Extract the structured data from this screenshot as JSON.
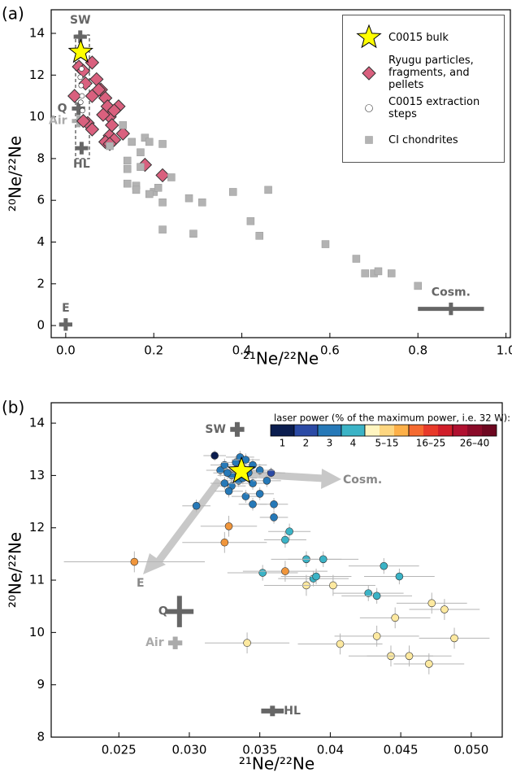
{
  "chart_data": [
    {
      "type": "scatter",
      "panel_label": "(a)",
      "x_label": "²¹Ne/²²Ne",
      "y_label": "²⁰Ne/²²Ne",
      "xlim": [
        -0.033,
        1.01
      ],
      "ylim": [
        -0.58,
        15.13
      ],
      "xticks": [
        {
          "value": 0,
          "label": "0.0"
        },
        0.2,
        0.4,
        0.6,
        0.8,
        {
          "value": 1,
          "label": "1.0"
        }
      ],
      "yticks": [
        0,
        2,
        4,
        6,
        8,
        10,
        12,
        14
      ],
      "legend": "upper right",
      "series": [
        {
          "name": "C0015 bulk",
          "marker": "star",
          "color": "#ffff00",
          "x": [
            0.034
          ],
          "values": [
            13.1
          ]
        },
        {
          "name": "Ryugu particles, fragments, and pellets",
          "marker": "diamond",
          "color": "#d9607e",
          "x": [
            0.02,
            0.03,
            0.04,
            0.06,
            0.045,
            0.05,
            0.06,
            0.07,
            0.08,
            0.09,
            0.095,
            0.1,
            0.1,
            0.11,
            0.09,
            0.12,
            0.13,
            0.085,
            0.06,
            0.04,
            0.11,
            0.105,
            0.18,
            0.22,
            0.1,
            0.075
          ],
          "values": [
            11.0,
            12.4,
            12.2,
            12.6,
            11.6,
            9.7,
            9.4,
            11.8,
            11.3,
            10.9,
            10.5,
            10.0,
            9.1,
            8.9,
            8.8,
            10.5,
            9.2,
            10.1,
            11.0,
            9.8,
            10.3,
            9.6,
            7.7,
            7.2,
            8.7,
            11.3
          ]
        },
        {
          "name": "C0015 extraction steps",
          "marker": "circle",
          "color": "#ffffff",
          "x": [
            0.033,
            0.035,
            0.037,
            0.034,
            0.036,
            0.038
          ],
          "values": [
            11.9,
            11.5,
            11.0,
            10.7,
            12.3,
            10.3
          ]
        },
        {
          "name": "CI chondrites",
          "marker": "square",
          "color": "#b3b3b3",
          "x": [
            0.1,
            0.14,
            0.14,
            0.15,
            0.14,
            0.16,
            0.17,
            0.18,
            0.19,
            0.2,
            0.21,
            0.22,
            0.22,
            0.22,
            0.24,
            0.28,
            0.29,
            0.31,
            0.38,
            0.42,
            0.44,
            0.46,
            0.59,
            0.66,
            0.68,
            0.7,
            0.71,
            0.74,
            0.8,
            0.13,
            0.17,
            0.16,
            0.19
          ],
          "values": [
            8.6,
            7.9,
            7.5,
            8.8,
            6.8,
            6.7,
            8.3,
            9.0,
            8.8,
            6.4,
            6.6,
            8.7,
            5.9,
            4.6,
            7.1,
            6.1,
            4.4,
            5.9,
            6.4,
            5.0,
            4.3,
            6.5,
            3.9,
            3.2,
            2.5,
            2.5,
            2.6,
            2.5,
            1.9,
            9.6,
            7.6,
            6.5,
            6.3
          ]
        }
      ],
      "endmembers": [
        {
          "name": "SW",
          "x": 0.033,
          "y": 13.84,
          "xerr": 0.015,
          "yerr": 0.3,
          "color": "#666666",
          "label_pos": "top"
        },
        {
          "name": "Q",
          "x": 0.029,
          "y": 10.4,
          "xerr": 0.015,
          "yerr": 0.3,
          "color": "#666666",
          "label_pos": "left"
        },
        {
          "name": "Air",
          "x": 0.029,
          "y": 9.8,
          "xerr": 0.015,
          "yerr": 0.3,
          "color": "#aaaaaa",
          "label_pos": "left"
        },
        {
          "name": "HL",
          "x": 0.036,
          "y": 8.5,
          "xerr": 0.015,
          "yerr": 0.3,
          "color": "#666666",
          "label_pos": "bottom"
        },
        {
          "name": "E",
          "x": 0.0,
          "y": 0.05,
          "xerr": 0.015,
          "yerr": 0.3,
          "color": "#666666",
          "label_pos": "top"
        },
        {
          "name": "Cosm.",
          "x": 0.875,
          "y": 0.8,
          "xerr": 0.075,
          "yerr": 0.3,
          "color": "#666666",
          "label_pos": "top"
        }
      ]
    },
    {
      "type": "scatter",
      "panel_label": "(b)",
      "x_label": "²¹Ne/²²Ne",
      "y_label": "²⁰Ne/²²Ne",
      "xlim": [
        0.0202,
        0.0522
      ],
      "ylim": [
        8,
        14.39
      ],
      "xticks": [
        0.025,
        {
          "value": 0.03,
          "label": "0.030"
        },
        0.035,
        0.04,
        0.045,
        {
          "value": 0.05,
          "label": "0.050"
        }
      ],
      "yticks": [
        8,
        9,
        10,
        11,
        12,
        13,
        14
      ],
      "colorbar_title": "laser power (% of the maximum power, i.e. 32 W):",
      "series": [
        {
          "name": "1",
          "marker": "circle",
          "color": "#0b1d4f",
          "bar_colors": [
            "#0b1d4f"
          ],
          "x": [
            0.0318
          ],
          "values": [
            13.38
          ],
          "xerr": [
            0.0008
          ],
          "yerr": [
            0.1
          ]
        },
        {
          "name": "2",
          "marker": "circle",
          "color": "#2b4aa5",
          "bar_colors": [
            "#2b4aa5"
          ],
          "x": [
            0.0358
          ],
          "values": [
            13.05
          ],
          "xerr": [
            0.001
          ],
          "yerr": [
            0.1
          ]
        },
        {
          "name": "3",
          "marker": "circle",
          "color": "#2679b8",
          "bar_colors": [
            "#2679b8"
          ],
          "x": [
            0.0322,
            0.0325,
            0.033,
            0.0333,
            0.0336,
            0.034,
            0.0345,
            0.035,
            0.0335,
            0.033,
            0.0325,
            0.0328,
            0.034,
            0.0345,
            0.035,
            0.0355,
            0.0345,
            0.036,
            0.036,
            0.0305,
            0.0338,
            0.0342,
            0.0327
          ],
          "values": [
            13.1,
            13.2,
            13.0,
            13.25,
            13.35,
            13.3,
            13.2,
            13.1,
            12.9,
            12.8,
            12.85,
            12.7,
            12.6,
            12.85,
            12.65,
            12.9,
            12.45,
            12.45,
            12.2,
            12.42,
            12.95,
            13.05,
            13.05
          ],
          "xerr": [
            0.001,
            0.001,
            0.001,
            0.001,
            0.001,
            0.001,
            0.001,
            0.001,
            0.001,
            0.001,
            0.001,
            0.001,
            0.001,
            0.001,
            0.001,
            0.001,
            0.001,
            0.001,
            0.001,
            0.001,
            0.001,
            0.001,
            0.001
          ],
          "yerr": [
            0.12,
            0.12,
            0.12,
            0.12,
            0.12,
            0.12,
            0.12,
            0.12,
            0.12,
            0.12,
            0.12,
            0.12,
            0.12,
            0.12,
            0.12,
            0.12,
            0.12,
            0.12,
            0.12,
            0.12,
            0.12,
            0.12,
            0.12
          ]
        },
        {
          "name": "4",
          "marker": "circle",
          "color": "#3bb3c6",
          "bar_colors": [
            "#3bb3c6"
          ],
          "x": [
            0.0371,
            0.0368,
            0.0352,
            0.0383,
            0.0388,
            0.039,
            0.0395,
            0.0427,
            0.0433,
            0.0438,
            0.0449
          ],
          "values": [
            11.93,
            11.77,
            11.14,
            11.4,
            11.03,
            11.07,
            11.4,
            10.75,
            10.7,
            11.27,
            11.07
          ],
          "xerr": [
            0.0015,
            0.0015,
            0.0025,
            0.0025,
            0.0025,
            0.0025,
            0.0025,
            0.0025,
            0.0025,
            0.0025,
            0.0025
          ],
          "yerr": [
            0.15,
            0.15,
            0.15,
            0.15,
            0.15,
            0.15,
            0.15,
            0.15,
            0.15,
            0.15,
            0.15
          ]
        },
        {
          "name": "5–15",
          "marker": "circle",
          "color": "#fde9a0",
          "bar_colors": [
            "#fff5c0",
            "#fdd680",
            "#fdb048"
          ],
          "x": [
            0.0341,
            0.0407,
            0.0433,
            0.0443,
            0.0456,
            0.0446,
            0.0472,
            0.0481,
            0.0488,
            0.047,
            0.0383,
            0.0402
          ],
          "values": [
            9.8,
            9.78,
            9.93,
            9.55,
            9.55,
            10.28,
            10.56,
            10.44,
            9.89,
            9.4,
            10.9,
            10.9
          ],
          "xerr": [
            0.003,
            0.003,
            0.003,
            0.003,
            0.003,
            0.0025,
            0.0025,
            0.0025,
            0.0025,
            0.0025,
            0.003,
            0.003
          ],
          "yerr": [
            0.2,
            0.2,
            0.2,
            0.2,
            0.2,
            0.2,
            0.2,
            0.2,
            0.2,
            0.2,
            0.2,
            0.2
          ]
        },
        {
          "name": "16–25",
          "marker": "circle",
          "color": "#f0963c",
          "bar_colors": [
            "#f56a30",
            "#e83a2a",
            "#d01e2a"
          ],
          "x": [
            0.0261,
            0.0328,
            0.0325,
            0.0368
          ],
          "values": [
            11.35,
            12.03,
            11.72,
            11.17
          ],
          "xerr": [
            0.005,
            0.002,
            0.003,
            0.003
          ],
          "yerr": [
            0.2,
            0.2,
            0.2,
            0.2
          ]
        },
        {
          "name": "26–40",
          "marker": "circle",
          "color": "#8a0a28",
          "bar_colors": [
            "#b01030",
            "#8a0a28",
            "#6d0720"
          ],
          "x": [],
          "values": []
        },
        {
          "marker": "star",
          "color": "#ffff00",
          "x": [
            0.0337
          ],
          "values": [
            13.08
          ]
        }
      ],
      "endmembers": [
        {
          "name": "SW",
          "x": 0.0334,
          "y": 13.88,
          "xerr": 0.0005,
          "yerr": 0.14,
          "color": "#666666",
          "label_pos": "left"
        },
        {
          "name": "Q",
          "x": 0.0293,
          "y": 10.4,
          "xerr": 0.001,
          "yerr": 0.3,
          "color": "#666666",
          "label_pos": "left"
        },
        {
          "name": "Air",
          "x": 0.029,
          "y": 9.8,
          "xerr": 0.0005,
          "yerr": 0.12,
          "color": "#aaaaaa",
          "label_pos": "left"
        },
        {
          "name": "HL",
          "x": 0.0359,
          "y": 8.5,
          "xerr": 0.0008,
          "yerr": 0.1,
          "color": "#666666",
          "label_pos": "right"
        }
      ],
      "arrow_labels": [
        "Cosm.",
        "E"
      ]
    }
  ]
}
